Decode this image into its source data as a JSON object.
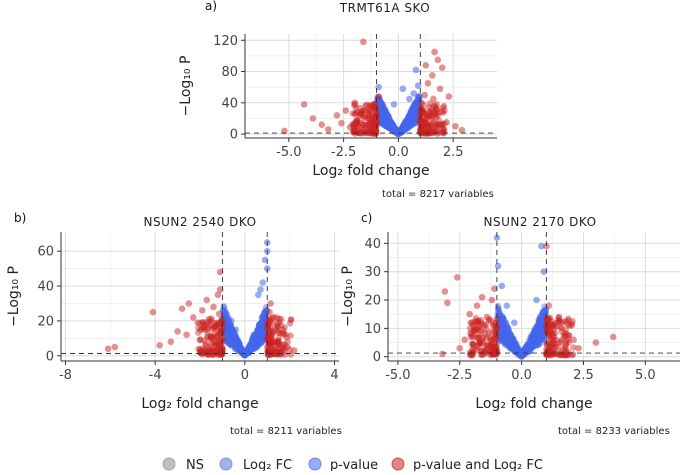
{
  "colors": {
    "ns": "#8a8a8a",
    "log2fc": "#5577cc",
    "pvalue": "#4466ee",
    "both": "#cc2222",
    "grid": "#e8e8e8",
    "panel_bg": "#ffffff",
    "axis": "#333333"
  },
  "legend": {
    "ns": "NS",
    "log2fc": "Log₂ FC",
    "pvalue": "p-value",
    "both": "p-value and Log₂ FC"
  },
  "chart_data": [
    {
      "panel": "a)",
      "type": "scatter",
      "title": "TRMT61A SKO",
      "xlabel": "Log₂ fold change",
      "ylabel": "−Log₁₀ P",
      "xlim": [
        -7,
        4.5
      ],
      "ylim": [
        -5,
        128
      ],
      "xticks": [
        -5.0,
        -2.5,
        0.0,
        2.5
      ],
      "xtick_labels": [
        "-5.0",
        "-2.5",
        "0.0",
        "2.5"
      ],
      "yticks": [
        0,
        40,
        80,
        120
      ],
      "ytick_labels": [
        "0",
        "40",
        "80",
        "120"
      ],
      "fc_cutoff": 1,
      "p_cutoff": 1.3,
      "caption": "total = 8217 variables",
      "red_points": [
        [
          -5.2,
          4
        ],
        [
          -4.3,
          38
        ],
        [
          -3.9,
          20
        ],
        [
          -3.5,
          12
        ],
        [
          -3.2,
          6
        ],
        [
          -2.8,
          24
        ],
        [
          -2.6,
          14
        ],
        [
          -2.4,
          30
        ],
        [
          -2.2,
          9
        ],
        [
          -2.0,
          40
        ],
        [
          -1.9,
          18
        ],
        [
          -1.7,
          26
        ],
        [
          -1.6,
          12
        ],
        [
          -1.5,
          36
        ],
        [
          -1.4,
          20
        ],
        [
          -1.3,
          15
        ],
        [
          -1.25,
          30
        ],
        [
          -1.2,
          8
        ],
        [
          -1.15,
          22
        ],
        [
          -1.1,
          35
        ],
        [
          -1.05,
          12
        ],
        [
          -1.6,
          118
        ],
        [
          -0.9,
          48
        ],
        [
          1.05,
          40
        ],
        [
          1.1,
          12
        ],
        [
          1.15,
          28
        ],
        [
          1.2,
          50
        ],
        [
          1.3,
          20
        ],
        [
          1.35,
          65
        ],
        [
          1.4,
          34
        ],
        [
          1.5,
          10
        ],
        [
          1.55,
          75
        ],
        [
          1.6,
          45
        ],
        [
          1.7,
          25
        ],
        [
          1.8,
          95
        ],
        [
          1.9,
          58
        ],
        [
          2.0,
          85
        ],
        [
          2.1,
          30
        ],
        [
          2.2,
          15
        ],
        [
          2.3,
          48
        ],
        [
          2.6,
          10
        ],
        [
          2.9,
          5
        ],
        [
          1.65,
          105
        ],
        [
          1.25,
          88
        ]
      ],
      "blue_points": [
        [
          -0.9,
          60
        ],
        [
          0.2,
          58
        ],
        [
          0.5,
          45
        ],
        [
          0.7,
          52
        ],
        [
          0.9,
          62
        ],
        [
          -0.2,
          38
        ],
        [
          0.8,
          82
        ]
      ]
    },
    {
      "panel": "b)",
      "type": "scatter",
      "title": "NSUN2 2540 DKO",
      "xlabel": "Log₂ fold change",
      "ylabel": "−Log₁₀ P",
      "xlim": [
        -8.2,
        4.2
      ],
      "ylim": [
        -3,
        71
      ],
      "xticks": [
        -8,
        -4,
        0,
        4
      ],
      "xtick_labels": [
        "-8",
        "-4",
        "0",
        "4"
      ],
      "yticks": [
        0,
        20,
        40,
        60
      ],
      "ytick_labels": [
        "0",
        "20",
        "40",
        "60"
      ],
      "fc_cutoff": 1,
      "p_cutoff": 1.3,
      "caption": "total = 8211 variables",
      "red_points": [
        [
          -6.1,
          4
        ],
        [
          -5.8,
          5
        ],
        [
          -4.1,
          25
        ],
        [
          -3.8,
          6
        ],
        [
          -3.3,
          8
        ],
        [
          -3.0,
          14
        ],
        [
          -2.8,
          27
        ],
        [
          -2.6,
          12
        ],
        [
          -2.5,
          30
        ],
        [
          -2.3,
          22
        ],
        [
          -2.1,
          19
        ],
        [
          -2.0,
          9
        ],
        [
          -1.9,
          26
        ],
        [
          -1.8,
          15
        ],
        [
          -1.7,
          32
        ],
        [
          -1.6,
          21
        ],
        [
          -1.5,
          11
        ],
        [
          -1.4,
          28
        ],
        [
          -1.3,
          17
        ],
        [
          -1.2,
          35
        ],
        [
          -1.15,
          24
        ],
        [
          -1.1,
          48
        ],
        [
          -1.05,
          14
        ],
        [
          -1.1,
          38
        ],
        [
          1.05,
          18
        ],
        [
          1.1,
          25
        ],
        [
          1.2,
          12
        ],
        [
          1.3,
          22
        ],
        [
          1.5,
          8
        ],
        [
          1.7,
          15
        ],
        [
          1.9,
          5
        ],
        [
          2.2,
          3
        ],
        [
          1.15,
          30
        ]
      ],
      "blue_points": [
        [
          1.0,
          65
        ],
        [
          1.0,
          60
        ],
        [
          0.9,
          55
        ],
        [
          0.8,
          42
        ],
        [
          0.6,
          35
        ],
        [
          -0.6,
          20
        ],
        [
          -0.4,
          15
        ],
        [
          0.7,
          38
        ],
        [
          1.0,
          50
        ]
      ]
    },
    {
      "panel": "c)",
      "type": "scatter",
      "title": "NSUN2 2170 DKO",
      "xlabel": "Log₂ fold change",
      "ylabel": "−Log₁₀ P",
      "xlim": [
        -5.4,
        6.4
      ],
      "ylim": [
        -1.5,
        44
      ],
      "xticks": [
        -5.0,
        -2.5,
        0.0,
        2.5,
        5.0
      ],
      "xtick_labels": [
        "-5.0",
        "-2.5",
        "0.0",
        "2.5",
        "5.0"
      ],
      "yticks": [
        0,
        10,
        20,
        30,
        40
      ],
      "ytick_labels": [
        "0",
        "10",
        "20",
        "30",
        "40"
      ],
      "fc_cutoff": 1,
      "p_cutoff": 1.3,
      "caption": "total = 8233 variables",
      "red_points": [
        [
          -3.2,
          1
        ],
        [
          -3.1,
          23
        ],
        [
          -3.0,
          19
        ],
        [
          -2.6,
          28
        ],
        [
          -2.5,
          3
        ],
        [
          -2.3,
          6
        ],
        [
          -2.1,
          15
        ],
        [
          -2.0,
          12
        ],
        [
          -1.9,
          9
        ],
        [
          -1.8,
          18
        ],
        [
          -1.7,
          5
        ],
        [
          -1.6,
          21
        ],
        [
          -1.5,
          11
        ],
        [
          -1.4,
          14
        ],
        [
          -1.3,
          7
        ],
        [
          -1.2,
          20
        ],
        [
          -1.1,
          9
        ],
        [
          -1.1,
          24
        ],
        [
          1.05,
          12
        ],
        [
          1.1,
          18
        ],
        [
          1.2,
          6
        ],
        [
          1.3,
          10
        ],
        [
          1.5,
          14
        ],
        [
          1.6,
          5
        ],
        [
          1.8,
          8
        ],
        [
          2.0,
          11
        ],
        [
          2.1,
          6
        ],
        [
          2.3,
          3
        ],
        [
          3.0,
          5
        ],
        [
          3.7,
          7
        ],
        [
          1.0,
          39
        ]
      ],
      "blue_points": [
        [
          -1.0,
          42
        ],
        [
          -0.95,
          32
        ],
        [
          -0.8,
          25
        ],
        [
          -0.6,
          18
        ],
        [
          0.8,
          39
        ],
        [
          0.9,
          30
        ],
        [
          0.6,
          20
        ],
        [
          -0.3,
          12
        ]
      ]
    }
  ]
}
